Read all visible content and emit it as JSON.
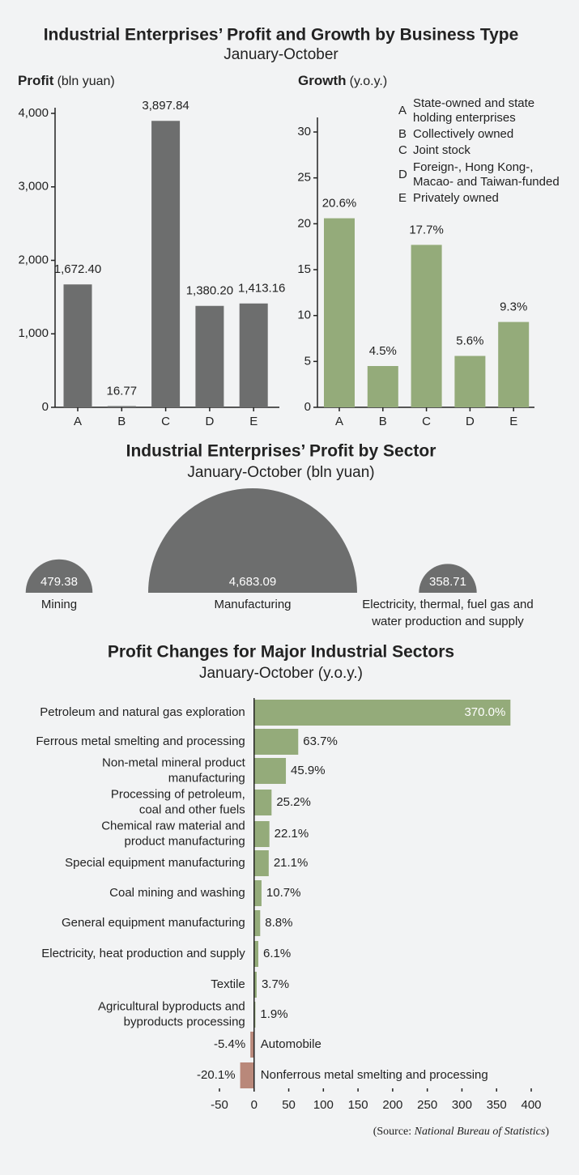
{
  "header": {
    "title": "Industrial Enterprises’ Profit and Growth by Business Type",
    "subtitle": "January-October"
  },
  "chart_data": [
    {
      "type": "bar",
      "axis_label": "Profit",
      "axis_unit": "(bln yuan)",
      "categories": [
        "A",
        "B",
        "C",
        "D",
        "E"
      ],
      "values": [
        1672.4,
        16.77,
        3897.84,
        1380.2,
        1413.16
      ],
      "value_labels": [
        "1,672.40",
        "16.77",
        "3,897.84",
        "1,380.20",
        "1,413.16"
      ],
      "color": "#6d6e6e",
      "ylim": [
        0,
        4000
      ],
      "yticks": [
        0,
        {
          "value": 1000,
          "label": "1,000"
        },
        {
          "value": 2000,
          "label": "2,000"
        },
        {
          "value": 3000,
          "label": "3,000"
        },
        {
          "value": 4000,
          "label": "4,000"
        }
      ]
    },
    {
      "type": "bar",
      "axis_label": "Growth",
      "axis_unit": "(y.o.y.)",
      "categories": [
        "A",
        "B",
        "C",
        "D",
        "E"
      ],
      "values": [
        20.6,
        4.5,
        17.7,
        5.6,
        9.3
      ],
      "value_labels": [
        "20.6%",
        "4.5%",
        "17.7%",
        "5.6%",
        "9.3%"
      ],
      "color": "#94ab7a",
      "ylim": [
        0,
        30
      ],
      "yticks": [
        0,
        5,
        10,
        15,
        20,
        25,
        30
      ],
      "legend": [
        {
          "key": "A",
          "label": "State-owned and state\nholding enterprises"
        },
        {
          "key": "B",
          "label": "Collectively owned"
        },
        {
          "key": "C",
          "label": "Joint stock"
        },
        {
          "key": "D",
          "label": "Foreign-, Hong Kong-,\nMacao- and  Taiwan-funded"
        },
        {
          "key": "E",
          "label": "Privately owned"
        }
      ]
    },
    {
      "type": "semicircle",
      "title": "Industrial Enterprises’ Profit by Sector",
      "subtitle": "January-October (bln yuan)",
      "categories": [
        "Mining",
        "Manufacturing",
        "Electricity, thermal, fuel gas and\nwater production and supply"
      ],
      "values": [
        479.38,
        4683.09,
        358.71
      ],
      "value_labels": [
        "479.38",
        "4,683.09",
        "358.71"
      ],
      "color": "#6d6e6e"
    },
    {
      "type": "hbar",
      "title": "Profit Changes for Major Industrial Sectors",
      "subtitle": "January-October (y.o.y.)",
      "categories": [
        "Petroleum and natural gas exploration",
        "Ferrous metal smelting and processing",
        "Non-metal mineral product\nmanufacturing",
        "Processing of petroleum,\ncoal and other fuels",
        "Chemical raw material and\nproduct manufacturing",
        "Special equipment manufacturing",
        "Coal mining and washing",
        "General equipment manufacturing",
        "Electricity, heat production and supply",
        "Textile",
        "Agricultural byproducts and\nbyproducts processing",
        "Automobile",
        "Nonferrous metal smelting and processing"
      ],
      "values": [
        370.0,
        63.7,
        45.9,
        25.2,
        22.1,
        21.1,
        10.7,
        8.8,
        6.1,
        3.7,
        1.9,
        -5.4,
        -20.1
      ],
      "value_labels": [
        "370.0%",
        "63.7%",
        "45.9%",
        "25.2%",
        "22.1%",
        "21.1%",
        "10.7%",
        "8.8%",
        "6.1%",
        "3.7%",
        "1.9%",
        "-5.4%",
        "-20.1%"
      ],
      "color": "#94ab7a",
      "negative_color": "#b9887a",
      "xlim": [
        -50,
        400
      ],
      "xticks": [
        -50,
        0,
        50,
        100,
        150,
        200,
        250,
        300,
        350,
        400
      ],
      "source": {
        "prefix": "(Source:",
        "name": "National Bureau of Statistics",
        "suffix": ")"
      }
    }
  ]
}
